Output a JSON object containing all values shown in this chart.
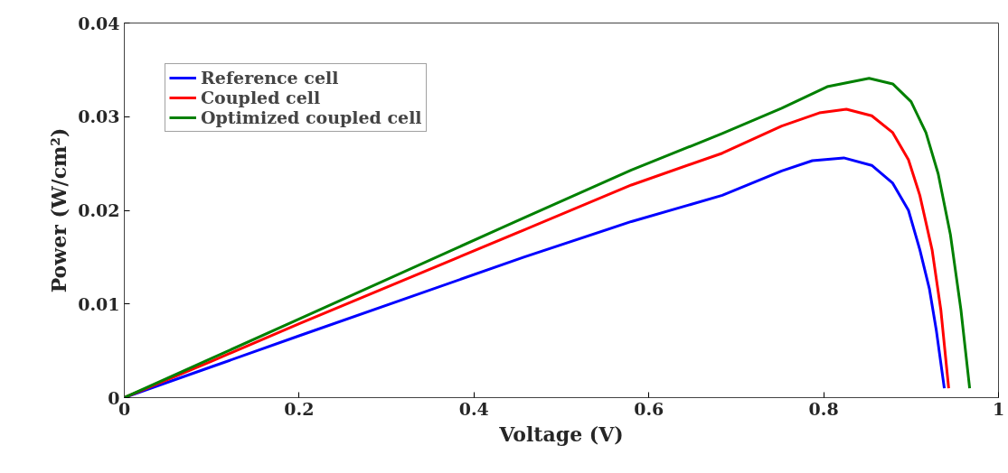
{
  "chart_data": {
    "type": "line",
    "xlabel": "Voltage (V)",
    "ylabel": "Power (W/cm²)",
    "xlim": [
      0,
      1
    ],
    "ylim": [
      0,
      0.04
    ],
    "xticks": [
      0,
      0.2,
      0.4,
      0.6,
      0.8,
      1
    ],
    "yticks": [
      0,
      0.01,
      0.02,
      0.03,
      0.04
    ],
    "grid": false,
    "legend": "top left",
    "marker": "none",
    "line_style": "solid",
    "series": [
      {
        "name": "Reference cell",
        "color": "#0000ff",
        "x": [
          0,
          0.1,
          0.2,
          0.457,
          0.58,
          0.684,
          0.752,
          0.787,
          0.823,
          0.855,
          0.879,
          0.897,
          0.91,
          0.921,
          0.929,
          0.938
        ],
        "values": [
          0,
          0.0033,
          0.0066,
          0.015,
          0.0188,
          0.0216,
          0.0242,
          0.0253,
          0.0256,
          0.0248,
          0.0229,
          0.02,
          0.0158,
          0.0116,
          0.0071,
          0.001
        ]
      },
      {
        "name": "Coupled cell",
        "color": "#ff0000",
        "x": [
          0,
          0.1,
          0.2,
          0.457,
          0.58,
          0.684,
          0.752,
          0.795,
          0.826,
          0.855,
          0.879,
          0.897,
          0.91,
          0.924,
          0.934,
          0.943
        ],
        "values": [
          0,
          0.0039,
          0.0079,
          0.0179,
          0.0227,
          0.0261,
          0.029,
          0.0304,
          0.0308,
          0.0301,
          0.0283,
          0.0254,
          0.0216,
          0.0158,
          0.0094,
          0.001
        ]
      },
      {
        "name": "Optimized coupled cell",
        "color": "#008000",
        "x": [
          0,
          0.1,
          0.2,
          0.457,
          0.58,
          0.684,
          0.752,
          0.804,
          0.852,
          0.879,
          0.9,
          0.917,
          0.931,
          0.945,
          0.957,
          0.967
        ],
        "values": [
          0,
          0.0042,
          0.0084,
          0.0192,
          0.0243,
          0.0282,
          0.0309,
          0.0332,
          0.0341,
          0.0335,
          0.0316,
          0.0283,
          0.0239,
          0.0174,
          0.0094,
          0.001
        ]
      }
    ]
  }
}
